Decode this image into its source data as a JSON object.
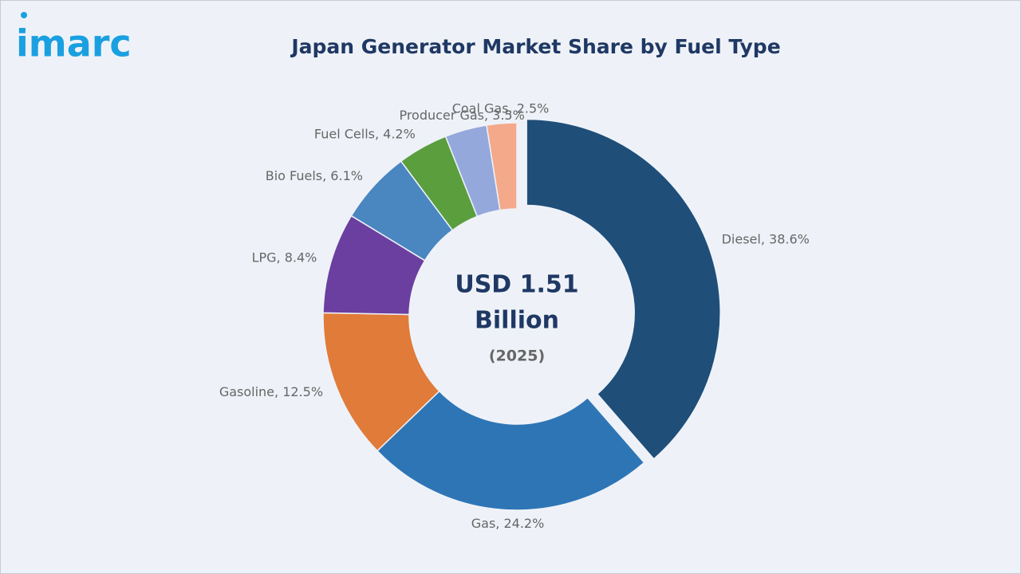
{
  "logo": "imarc",
  "chart_data": {
    "type": "donut",
    "title": "Japan Generator Market Share by Fuel Type",
    "center_text": [
      "USD 1.51",
      "Billion"
    ],
    "center_subtext": "(2025)",
    "values": [
      38.6,
      24.2,
      12.5,
      8.4,
      6.1,
      4.2,
      3.5,
      2.5
    ],
    "value_labels": [
      "Diesel, 38.6%",
      "Gas, 24.2%",
      "Gasoline, 12.5%",
      "LPG, 8.4%",
      "Bio Fuels, 6.1%",
      "Fuel Cells, 4.2%",
      "Producer Gas, 3.5%",
      "Coal Gas, 2.5%"
    ],
    "colors": [
      "#1f4e79",
      "#2e75b6",
      "#e07b39",
      "#6b3fa0",
      "#4a86c0",
      "#5a9e3e",
      "#95a8dc",
      "#f4a98a"
    ],
    "exploded": 0
  }
}
